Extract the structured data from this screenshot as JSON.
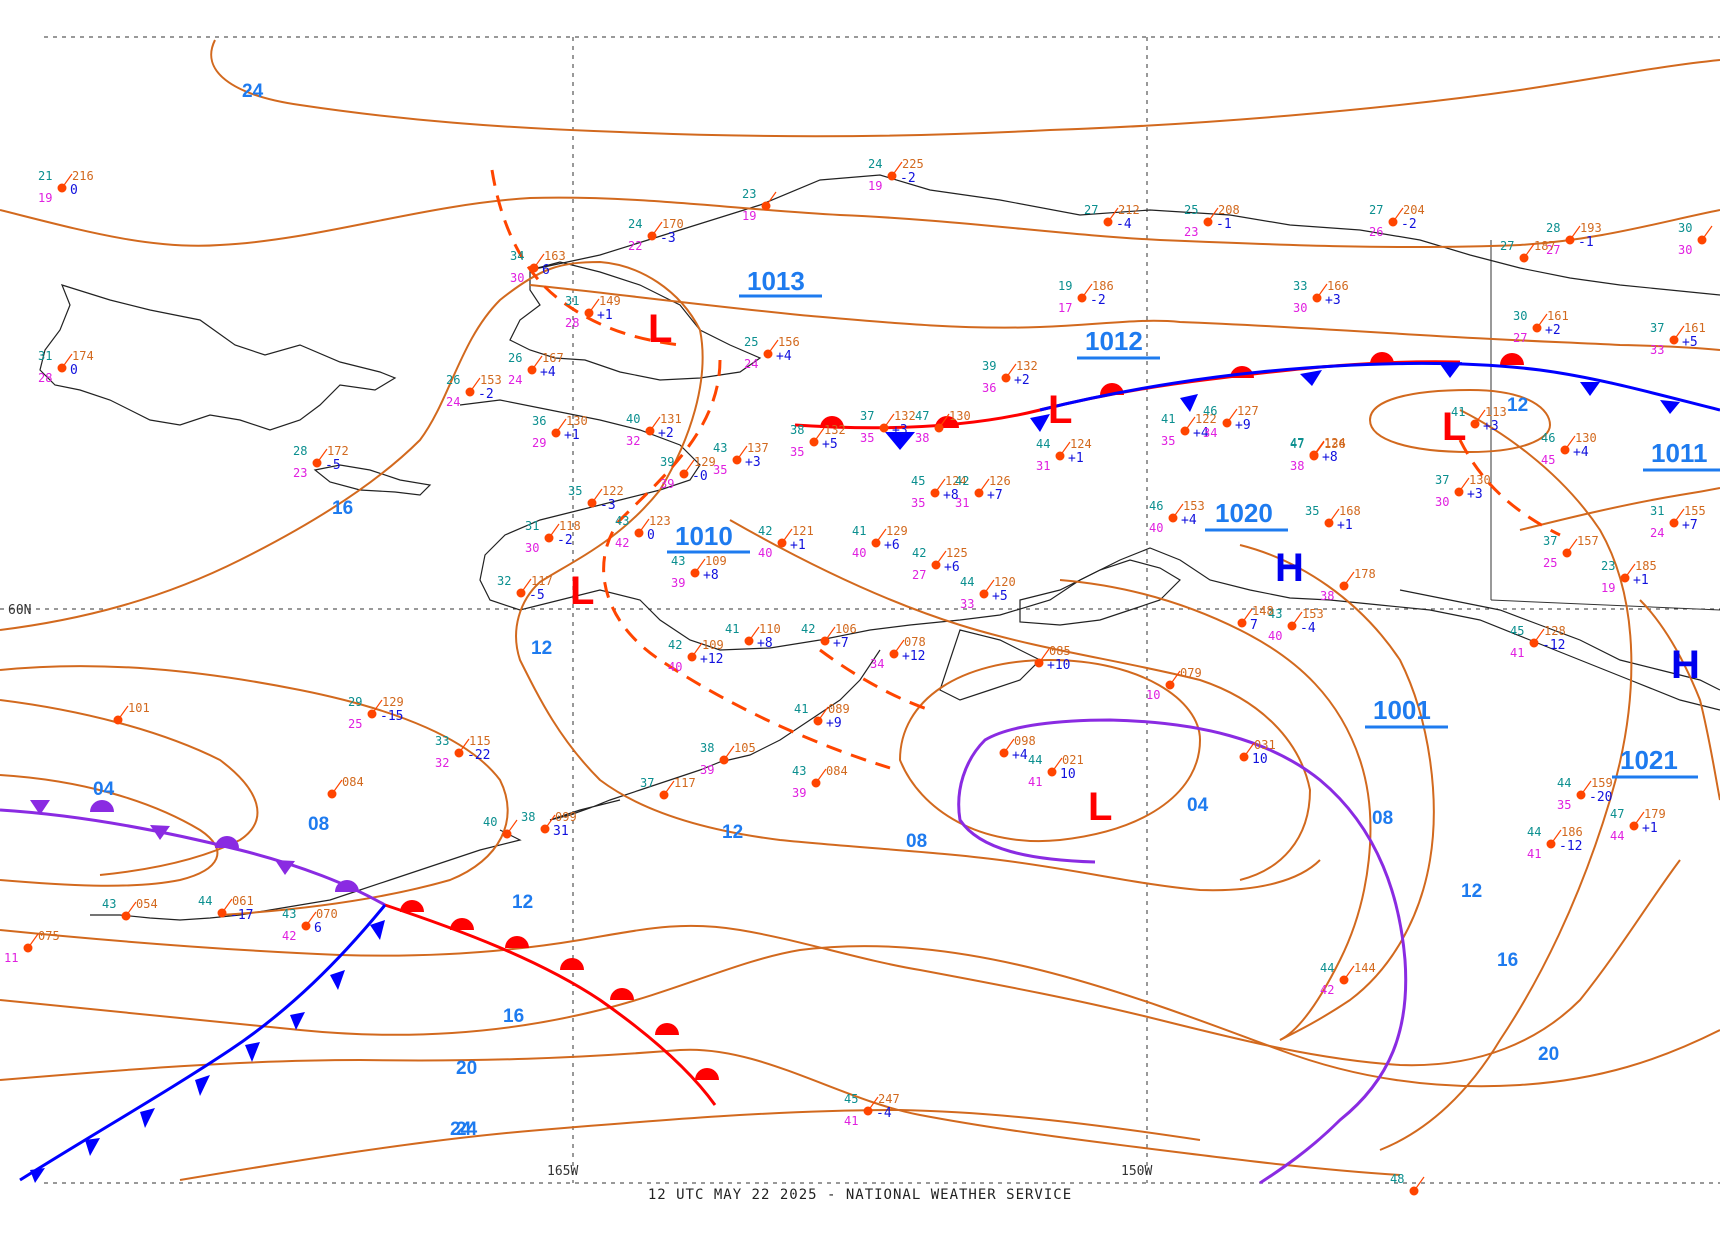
{
  "map": {
    "footer": "12 UTC MAY 22 2025 - NATIONAL WEATHER SERVICE",
    "grid_labels": {
      "lat_60": "60N",
      "lon_165": "165W",
      "lon_150": "150W"
    },
    "isobar_labels": [
      "24",
      "24",
      "16",
      "12",
      "12",
      "04",
      "08",
      "12",
      "08",
      "04",
      "08",
      "12",
      "16",
      "20",
      "16",
      "20",
      "24",
      "12"
    ],
    "pressure_centers": [
      {
        "type": "L",
        "value": "1013",
        "color": "#ff0000"
      },
      {
        "type": "L",
        "value": "1012",
        "color": "#ff0000"
      },
      {
        "type": "L",
        "value": "1010",
        "color": "#ff0000"
      },
      {
        "type": "L",
        "value": "1001",
        "color": "#ff0000"
      },
      {
        "type": "L",
        "value": "",
        "color": "#ff0000"
      },
      {
        "type": "H",
        "value": "1020",
        "color": "#0000ee"
      },
      {
        "type": "H",
        "value": "1021",
        "color": "#0000ee"
      },
      {
        "type": "",
        "value": "1011",
        "color": "#0000ee"
      }
    ],
    "stations": [
      {
        "t": "21",
        "p": "216",
        "d": "19",
        "c": "0"
      },
      {
        "t": "31",
        "p": "174",
        "d": "28",
        "c": "0"
      },
      {
        "t": "34",
        "p": "163",
        "d": "30",
        "c": "6"
      },
      {
        "t": "24",
        "p": "170",
        "d": "22",
        "c": "-3"
      },
      {
        "t": "23",
        "p": "",
        "d": "19",
        "c": ""
      },
      {
        "t": "24",
        "p": "225",
        "d": "19",
        "c": "-2"
      },
      {
        "t": "27",
        "p": "212",
        "d": "",
        "c": "-4"
      },
      {
        "t": "25",
        "p": "208",
        "d": "23",
        "c": "-1"
      },
      {
        "t": "27",
        "p": "204",
        "d": "26",
        "c": "-2"
      },
      {
        "t": "28",
        "p": "193",
        "d": "27",
        "c": "-1"
      },
      {
        "t": "27",
        "p": "187",
        "d": "",
        "c": ""
      },
      {
        "t": "30",
        "p": "",
        "d": "30",
        "c": ""
      },
      {
        "t": "19",
        "p": "186",
        "d": "17",
        "c": "-2"
      },
      {
        "t": "33",
        "p": "166",
        "d": "30",
        "c": "+3"
      },
      {
        "t": "30",
        "p": "161",
        "d": "27",
        "c": "+2"
      },
      {
        "t": "37",
        "p": "161",
        "d": "33",
        "c": "+5"
      },
      {
        "t": "31",
        "p": "149",
        "d": "28",
        "c": "+1"
      },
      {
        "t": "25",
        "p": "156",
        "d": "24",
        "c": "+4"
      },
      {
        "t": "26",
        "p": "167",
        "d": "24",
        "c": "+4"
      },
      {
        "t": "26",
        "p": "153",
        "d": "24",
        "c": "-2"
      },
      {
        "t": "28",
        "p": "172",
        "d": "23",
        "c": "-5"
      },
      {
        "t": "36",
        "p": "130",
        "d": "29",
        "c": "+1"
      },
      {
        "t": "40",
        "p": "131",
        "d": "32",
        "c": "+2"
      },
      {
        "t": "39",
        "p": "132",
        "d": "36",
        "c": "+2"
      },
      {
        "t": "37",
        "p": "132",
        "d": "35",
        "c": "+3"
      },
      {
        "t": "47",
        "p": "130",
        "d": "38",
        "c": ""
      },
      {
        "t": "38",
        "p": "132",
        "d": "35",
        "c": "+5"
      },
      {
        "t": "43",
        "p": "137",
        "d": "35",
        "c": "+3"
      },
      {
        "t": "39",
        "p": "129",
        "d": "39",
        "c": "-0"
      },
      {
        "t": "35",
        "p": "122",
        "d": "",
        "c": "-3"
      },
      {
        "t": "43",
        "p": "123",
        "d": "42",
        "c": "0"
      },
      {
        "t": "31",
        "p": "118",
        "d": "30",
        "c": "-2"
      },
      {
        "t": "32",
        "p": "117",
        "d": "",
        "c": "-5"
      },
      {
        "t": "43",
        "p": "109",
        "d": "39",
        "c": "+8"
      },
      {
        "t": "42",
        "p": "121",
        "d": "40",
        "c": "+1"
      },
      {
        "t": "41",
        "p": "129",
        "d": "40",
        "c": "+6"
      },
      {
        "t": "45",
        "p": "124",
        "d": "35",
        "c": "+8"
      },
      {
        "t": "42",
        "p": "126",
        "d": "31",
        "c": "+7"
      },
      {
        "t": "42",
        "p": "125",
        "d": "27",
        "c": "+6"
      },
      {
        "t": "44",
        "p": "124",
        "d": "31",
        "c": "+1"
      },
      {
        "t": "41",
        "p": "122",
        "d": "35",
        "c": "+4"
      },
      {
        "t": "46",
        "p": "127",
        "d": "34",
        "c": "+9"
      },
      {
        "t": "47",
        "p": "124",
        "d": "",
        "c": "+8"
      },
      {
        "t": "47",
        "p": "136",
        "d": "38",
        "c": ""
      },
      {
        "t": "46",
        "p": "153",
        "d": "40",
        "c": "+4"
      },
      {
        "t": "35",
        "p": "168",
        "d": "",
        "c": "+1"
      },
      {
        "t": "41",
        "p": "113",
        "d": "",
        "c": "+3"
      },
      {
        "t": "46",
        "p": "130",
        "d": "45",
        "c": "+4"
      },
      {
        "t": "37",
        "p": "130",
        "d": "30",
        "c": "+3"
      },
      {
        "t": "37",
        "p": "157",
        "d": "25",
        "c": ""
      },
      {
        "t": "23",
        "p": "185",
        "d": "19",
        "c": "+1"
      },
      {
        "t": "31",
        "p": "155",
        "d": "24",
        "c": "+7"
      },
      {
        "t": "41",
        "p": "110",
        "d": "",
        "c": "+8"
      },
      {
        "t": "42",
        "p": "106",
        "d": "",
        "c": "+7"
      },
      {
        "t": "42",
        "p": "109",
        "d": "40",
        "c": "+12"
      },
      {
        "t": "",
        "p": "078",
        "d": "34",
        "c": "+12"
      },
      {
        "t": "44",
        "p": "120",
        "d": "33",
        "c": "+5"
      },
      {
        "t": "",
        "p": "085",
        "d": "",
        "c": "+10"
      },
      {
        "t": "",
        "p": "079",
        "d": "10",
        "c": ""
      },
      {
        "t": "41",
        "p": "089",
        "d": "",
        "c": "+9"
      },
      {
        "t": "38",
        "p": "105",
        "d": "39",
        "c": ""
      },
      {
        "t": "37",
        "p": "117",
        "d": "",
        "c": ""
      },
      {
        "t": "43",
        "p": "084",
        "d": "39",
        "c": ""
      },
      {
        "t": "44",
        "p": "021",
        "d": "41",
        "c": "10"
      },
      {
        "t": "",
        "p": "098",
        "d": "",
        "c": "+4"
      },
      {
        "t": "",
        "p": "031",
        "d": "",
        "c": "10"
      },
      {
        "t": "43",
        "p": "153",
        "d": "40",
        "c": "-4"
      },
      {
        "t": "",
        "p": "178",
        "d": "38",
        "c": ""
      },
      {
        "t": "",
        "p": "148",
        "d": "",
        "c": "7"
      },
      {
        "t": "44",
        "p": "159",
        "d": "35",
        "c": "-20"
      },
      {
        "t": "44",
        "p": "186",
        "d": "41",
        "c": "-12"
      },
      {
        "t": "47",
        "p": "179",
        "d": "44",
        "c": "+1"
      },
      {
        "t": "44",
        "p": "144",
        "d": "42",
        "c": ""
      },
      {
        "t": "45",
        "p": "247",
        "d": "41",
        "c": "-4"
      },
      {
        "t": "29",
        "p": "129",
        "d": "25",
        "c": "-15"
      },
      {
        "t": "33",
        "p": "115",
        "d": "32",
        "c": "-22"
      },
      {
        "t": "",
        "p": "101",
        "d": "",
        "c": ""
      },
      {
        "t": "",
        "p": "084",
        "d": "",
        "c": ""
      },
      {
        "t": "38",
        "p": "099",
        "d": "",
        "c": "31"
      },
      {
        "t": "40",
        "p": "",
        "d": "",
        "c": ""
      },
      {
        "t": "44",
        "p": "061",
        "d": "",
        "c": "-17"
      },
      {
        "t": "43",
        "p": "054",
        "d": "",
        "c": ""
      },
      {
        "t": "43",
        "p": "070",
        "d": "42",
        "c": "6"
      },
      {
        "t": "",
        "p": "075",
        "d": "11",
        "c": ""
      },
      {
        "t": "45",
        "p": "128",
        "d": "41",
        "c": "-12"
      },
      {
        "t": "48",
        "p": "",
        "d": "",
        "c": ""
      }
    ]
  }
}
